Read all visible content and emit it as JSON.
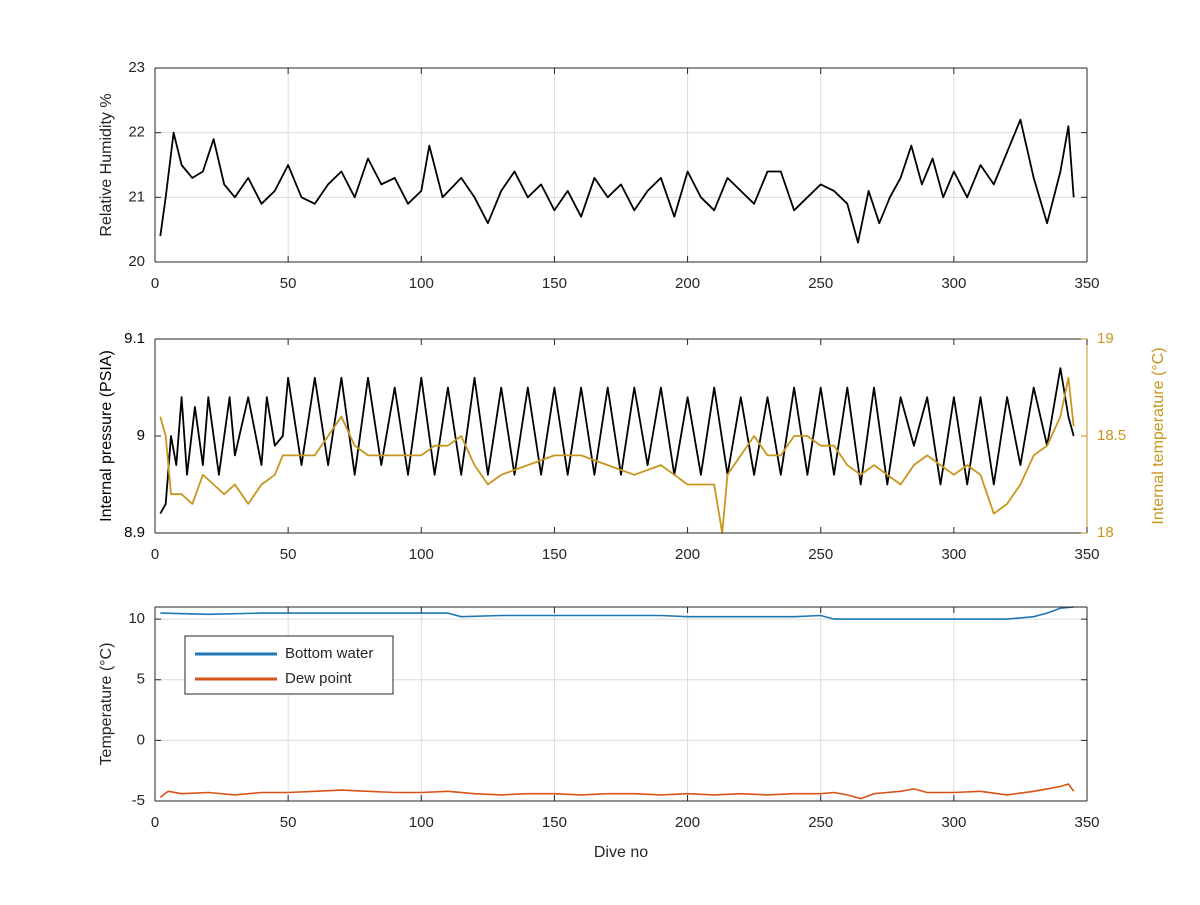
{
  "colors": {
    "black": "#000000",
    "gold": "#C8961E",
    "blue": "#1F77B4",
    "orange": "#D95319",
    "grid": "#DCDCDC",
    "axis": "#262626"
  },
  "chart_data": [
    {
      "type": "line",
      "xlabel": "",
      "ylabel": "Relative Humidity %",
      "xlim": [
        0,
        350
      ],
      "ylim": [
        20,
        23
      ],
      "xticks": [
        0,
        50,
        100,
        150,
        200,
        250,
        300,
        350
      ],
      "yticks": [
        20,
        21,
        22,
        23
      ],
      "grid": true,
      "series": [
        {
          "color": "#000000",
          "x": [
            2,
            4,
            7,
            10,
            14,
            18,
            22,
            26,
            30,
            35,
            40,
            45,
            50,
            55,
            60,
            65,
            70,
            75,
            80,
            85,
            90,
            95,
            100,
            103,
            108,
            115,
            120,
            125,
            130,
            135,
            140,
            145,
            150,
            155,
            160,
            165,
            170,
            175,
            180,
            185,
            190,
            195,
            200,
            205,
            210,
            215,
            220,
            225,
            230,
            235,
            240,
            245,
            250,
            255,
            260,
            264,
            268,
            272,
            276,
            280,
            284,
            288,
            292,
            296,
            300,
            305,
            310,
            315,
            320,
            325,
            330,
            335,
            340,
            343,
            345
          ],
          "y": [
            20.4,
            21.0,
            22.0,
            21.5,
            21.3,
            21.4,
            21.9,
            21.2,
            21.0,
            21.3,
            20.9,
            21.1,
            21.5,
            21.0,
            20.9,
            21.2,
            21.4,
            21.0,
            21.6,
            21.2,
            21.3,
            20.9,
            21.1,
            21.8,
            21.0,
            21.3,
            21.0,
            20.6,
            21.1,
            21.4,
            21.0,
            21.2,
            20.8,
            21.1,
            20.7,
            21.3,
            21.0,
            21.2,
            20.8,
            21.1,
            21.3,
            20.7,
            21.4,
            21.0,
            20.8,
            21.3,
            21.1,
            20.9,
            21.4,
            21.4,
            20.8,
            21.0,
            21.2,
            21.1,
            20.9,
            20.3,
            21.1,
            20.6,
            21.0,
            21.3,
            21.8,
            21.2,
            21.6,
            21.0,
            21.4,
            21.0,
            21.5,
            21.2,
            21.7,
            22.2,
            21.3,
            20.6,
            21.4,
            22.1,
            21.0
          ]
        }
      ]
    },
    {
      "type": "line",
      "xlabel": "",
      "ylabel": "Internal pressure (PSIA)",
      "y2label": "Internal temperature (°C)",
      "xlim": [
        0,
        350
      ],
      "ylim": [
        8.9,
        9.1
      ],
      "y2lim": [
        18,
        19
      ],
      "xticks": [
        0,
        50,
        100,
        150,
        200,
        250,
        300,
        350
      ],
      "yticks": [
        8.9,
        9,
        9.1
      ],
      "y2ticks": [
        18,
        18.5,
        19
      ],
      "grid": false,
      "series": [
        {
          "color": "#000000",
          "axis": "left",
          "x": [
            2,
            4,
            6,
            8,
            10,
            12,
            15,
            18,
            20,
            24,
            28,
            30,
            35,
            40,
            42,
            45,
            48,
            50,
            55,
            60,
            65,
            70,
            75,
            80,
            85,
            90,
            95,
            100,
            105,
            110,
            115,
            120,
            125,
            130,
            135,
            140,
            145,
            150,
            155,
            160,
            165,
            170,
            175,
            180,
            185,
            190,
            195,
            200,
            205,
            210,
            215,
            220,
            225,
            230,
            235,
            240,
            245,
            250,
            255,
            260,
            265,
            270,
            275,
            280,
            285,
            290,
            295,
            300,
            305,
            310,
            315,
            320,
            325,
            330,
            335,
            340,
            343,
            345
          ],
          "y": [
            8.92,
            8.93,
            9.0,
            8.97,
            9.04,
            8.96,
            9.03,
            8.97,
            9.04,
            8.96,
            9.04,
            8.98,
            9.04,
            8.97,
            9.04,
            8.99,
            9.0,
            9.06,
            8.97,
            9.06,
            8.97,
            9.06,
            8.96,
            9.06,
            8.97,
            9.05,
            8.96,
            9.06,
            8.96,
            9.05,
            8.96,
            9.06,
            8.96,
            9.05,
            8.96,
            9.05,
            8.96,
            9.05,
            8.96,
            9.05,
            8.96,
            9.05,
            8.96,
            9.05,
            8.97,
            9.05,
            8.96,
            9.04,
            8.96,
            9.05,
            8.96,
            9.04,
            8.96,
            9.04,
            8.96,
            9.05,
            8.96,
            9.05,
            8.96,
            9.05,
            8.95,
            9.05,
            8.95,
            9.04,
            8.99,
            9.04,
            8.95,
            9.04,
            8.95,
            9.04,
            8.95,
            9.04,
            8.97,
            9.05,
            8.99,
            9.07,
            9.02,
            9.0
          ]
        },
        {
          "color": "#C8961E",
          "axis": "right",
          "x": [
            2,
            4,
            6,
            10,
            14,
            18,
            22,
            26,
            30,
            35,
            40,
            45,
            48,
            55,
            60,
            65,
            70,
            75,
            80,
            90,
            100,
            105,
            110,
            115,
            120,
            125,
            130,
            140,
            150,
            160,
            170,
            180,
            190,
            195,
            200,
            205,
            210,
            213,
            215,
            220,
            225,
            230,
            235,
            240,
            245,
            250,
            255,
            260,
            265,
            270,
            275,
            280,
            285,
            290,
            295,
            300,
            305,
            310,
            315,
            320,
            325,
            330,
            335,
            340,
            343,
            345
          ],
          "y": [
            18.6,
            18.5,
            18.2,
            18.2,
            18.15,
            18.3,
            18.25,
            18.2,
            18.25,
            18.15,
            18.25,
            18.3,
            18.4,
            18.4,
            18.4,
            18.5,
            18.6,
            18.45,
            18.4,
            18.4,
            18.4,
            18.45,
            18.45,
            18.5,
            18.35,
            18.25,
            18.3,
            18.35,
            18.4,
            18.4,
            18.35,
            18.3,
            18.35,
            18.3,
            18.25,
            18.25,
            18.25,
            18.0,
            18.3,
            18.4,
            18.5,
            18.4,
            18.4,
            18.5,
            18.5,
            18.45,
            18.45,
            18.35,
            18.3,
            18.35,
            18.3,
            18.25,
            18.35,
            18.4,
            18.35,
            18.3,
            18.35,
            18.3,
            18.1,
            18.15,
            18.25,
            18.4,
            18.45,
            18.6,
            18.8,
            18.55
          ]
        }
      ]
    },
    {
      "type": "line",
      "xlabel": "Dive no",
      "ylabel": "Temperature (°C)",
      "xlim": [
        0,
        350
      ],
      "ylim": [
        -5,
        11
      ],
      "xticks": [
        0,
        50,
        100,
        150,
        200,
        250,
        300,
        350
      ],
      "yticks": [
        -5,
        0,
        5,
        10
      ],
      "grid": true,
      "legend": "top-left",
      "series": [
        {
          "name": "Bottom water",
          "color": "#1F77B4",
          "x": [
            2,
            20,
            40,
            60,
            80,
            100,
            110,
            115,
            130,
            150,
            170,
            190,
            200,
            220,
            240,
            250,
            255,
            265,
            280,
            300,
            320,
            330,
            335,
            340,
            345
          ],
          "y": [
            10.5,
            10.4,
            10.5,
            10.5,
            10.5,
            10.5,
            10.5,
            10.2,
            10.3,
            10.3,
            10.3,
            10.3,
            10.2,
            10.2,
            10.2,
            10.3,
            10.0,
            10.0,
            10.0,
            10.0,
            10.0,
            10.2,
            10.5,
            10.9,
            11.0
          ]
        },
        {
          "name": "Dew point",
          "color": "#D95319",
          "x": [
            2,
            5,
            10,
            20,
            30,
            40,
            50,
            60,
            70,
            80,
            90,
            100,
            110,
            120,
            130,
            140,
            150,
            160,
            170,
            180,
            190,
            200,
            210,
            220,
            230,
            240,
            250,
            255,
            260,
            265,
            270,
            280,
            285,
            290,
            300,
            310,
            320,
            330,
            335,
            340,
            343,
            345
          ],
          "y": [
            -4.7,
            -4.2,
            -4.4,
            -4.3,
            -4.5,
            -4.3,
            -4.3,
            -4.2,
            -4.1,
            -4.2,
            -4.3,
            -4.3,
            -4.2,
            -4.4,
            -4.5,
            -4.4,
            -4.4,
            -4.5,
            -4.4,
            -4.4,
            -4.5,
            -4.4,
            -4.5,
            -4.4,
            -4.5,
            -4.4,
            -4.4,
            -4.3,
            -4.5,
            -4.8,
            -4.4,
            -4.2,
            -4.0,
            -4.3,
            -4.3,
            -4.2,
            -4.5,
            -4.2,
            -4.0,
            -3.8,
            -3.6,
            -4.2
          ]
        }
      ]
    }
  ]
}
